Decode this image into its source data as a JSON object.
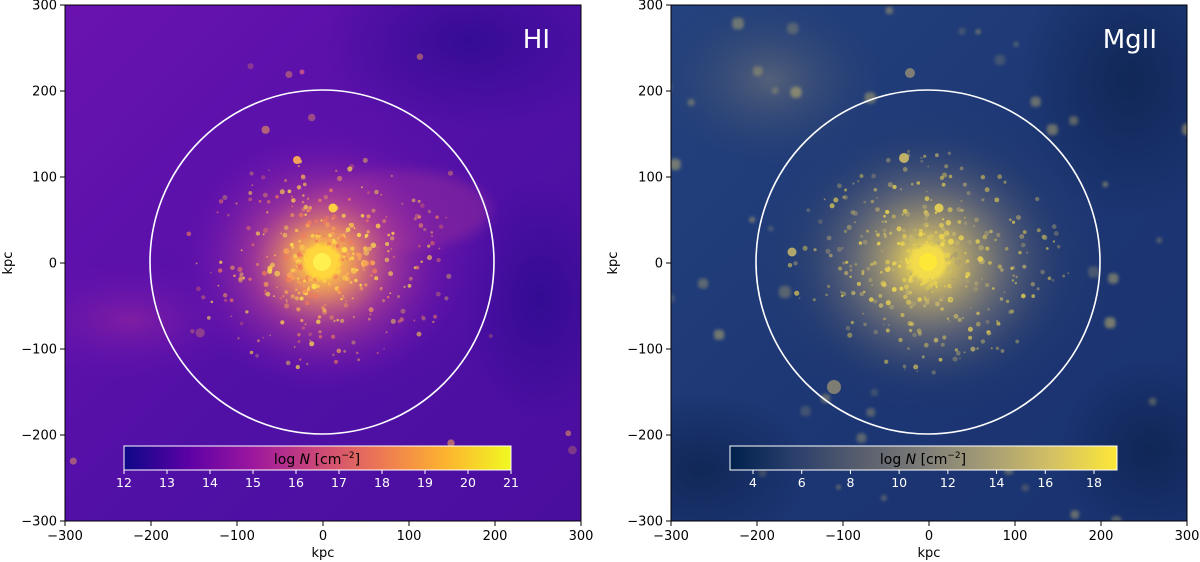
{
  "panels": [
    {
      "title": "HI",
      "xlabel": "kpc",
      "ylabel": "kpc",
      "x_ticks": [
        "−300",
        "−200",
        "−100",
        "0",
        "100",
        "200",
        "300"
      ],
      "y_ticks": [
        "300",
        "200",
        "100",
        "0",
        "−100",
        "−200",
        "−300"
      ],
      "colorbar": {
        "label_prefix": "log",
        "label_var": "N",
        "label_unit": "[cm",
        "label_exp": "−2",
        "label_close": "]",
        "ticks": [
          "12",
          "13",
          "14",
          "15",
          "16",
          "17",
          "18",
          "19",
          "20",
          "21"
        ],
        "colors": [
          "#0d0887",
          "#5c01a6",
          "#9c179e",
          "#cc4778",
          "#ed7953",
          "#fdb42f",
          "#f0f921"
        ]
      },
      "background_color": "#5a10a8",
      "halo_color": "#ffc84a"
    },
    {
      "title": "MgII",
      "xlabel": "kpc",
      "ylabel": "kpc",
      "x_ticks": [
        "−300",
        "−200",
        "−100",
        "0",
        "100",
        "200",
        "300"
      ],
      "y_ticks": [
        "300",
        "200",
        "100",
        "0",
        "−100",
        "−200",
        "−300"
      ],
      "colorbar": {
        "label_prefix": "log",
        "label_var": "N",
        "label_unit": "[cm",
        "label_exp": "−2",
        "label_close": "]",
        "ticks": [
          "4",
          "6",
          "8",
          "10",
          "12",
          "14",
          "16",
          "18"
        ],
        "colors": [
          "#00204c",
          "#2a3f6c",
          "#575d6d",
          "#7d7c78",
          "#a69d75",
          "#d3c164",
          "#fde737"
        ]
      },
      "background_color": "#213a78",
      "halo_color": "#f2d84a"
    }
  ]
}
